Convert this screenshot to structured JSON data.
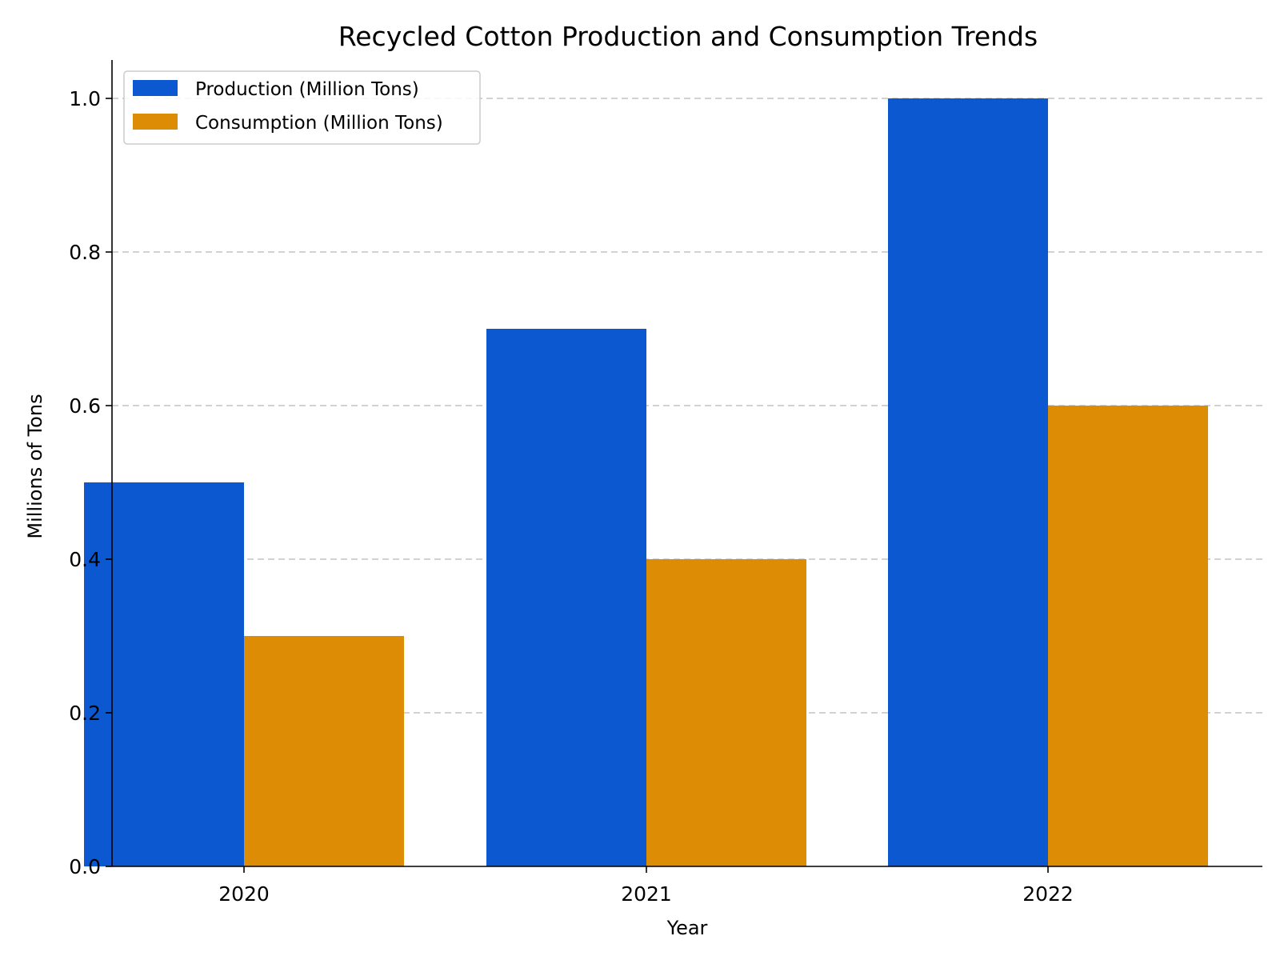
{
  "chart_data": {
    "type": "bar",
    "title": "Recycled Cotton Production and Consumption Trends",
    "xlabel": "Year",
    "ylabel": "Millions of Tons",
    "categories": [
      "2020",
      "2021",
      "2022"
    ],
    "series": [
      {
        "name": "Production (Million Tons)",
        "values": [
          0.5,
          0.7,
          1.0
        ],
        "color": "#0b58d0"
      },
      {
        "name": "Consumption (Million Tons)",
        "values": [
          0.3,
          0.4,
          0.6
        ],
        "color": "#dd8c05"
      }
    ],
    "ylim": [
      0,
      1.05
    ],
    "yticks": [
      "0.0",
      "0.2",
      "0.4",
      "0.6",
      "0.8",
      "1.0"
    ],
    "grid": true,
    "legend_position": "top-left"
  }
}
